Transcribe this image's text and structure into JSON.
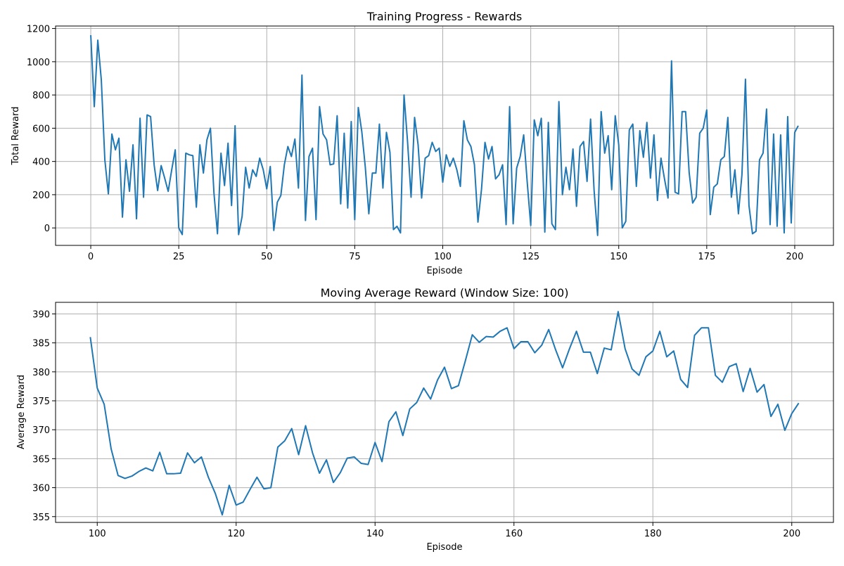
{
  "chart_data": [
    {
      "type": "line",
      "title": "Training Progress - Rewards",
      "xlabel": "Episode",
      "ylabel": "Total Reward",
      "xlim": [
        -10,
        211
      ],
      "ylim": [
        -105,
        1215
      ],
      "xticks": [
        0,
        25,
        50,
        75,
        100,
        125,
        150,
        175,
        200
      ],
      "yticks": [
        0,
        200,
        400,
        600,
        800,
        1000,
        1200
      ],
      "grid": true,
      "color": "#1f77b4",
      "series": [
        {
          "x_start": 0,
          "values": [
            1160,
            730,
            1130,
            890,
            410,
            205,
            565,
            470,
            540,
            65,
            410,
            220,
            500,
            55,
            660,
            185,
            680,
            670,
            380,
            225,
            375,
            300,
            220,
            350,
            470,
            0,
            -40,
            450,
            440,
            435,
            125,
            500,
            330,
            530,
            600,
            210,
            -35,
            450,
            255,
            510,
            135,
            615,
            -40,
            70,
            365,
            240,
            350,
            310,
            420,
            350,
            235,
            370,
            -15,
            155,
            195,
            380,
            490,
            430,
            535,
            240,
            920,
            45,
            430,
            480,
            50,
            730,
            565,
            530,
            380,
            385,
            675,
            145,
            570,
            120,
            640,
            50,
            725,
            580,
            365,
            85,
            330,
            330,
            625,
            240,
            575,
            455,
            -10,
            10,
            -30,
            800,
            520,
            185,
            665,
            500,
            180,
            420,
            435,
            515,
            460,
            480,
            275,
            440,
            370,
            420,
            350,
            250,
            645,
            530,
            490,
            380,
            35,
            230,
            515,
            415,
            490,
            295,
            320,
            380,
            20,
            730,
            25,
            360,
            430,
            560,
            275,
            15,
            650,
            555,
            660,
            -25,
            635,
            25,
            -10,
            760,
            200,
            365,
            230,
            475,
            130,
            490,
            520,
            280,
            655,
            225,
            -45,
            700,
            450,
            555,
            230,
            675,
            500,
            0,
            40,
            590,
            625,
            250,
            585,
            425,
            635,
            300,
            560,
            165,
            420,
            295,
            180,
            1005,
            215,
            205,
            700,
            700,
            335,
            150,
            185,
            570,
            600,
            710,
            80,
            245,
            265,
            410,
            430,
            665,
            185,
            350,
            85,
            320,
            895,
            135,
            -35,
            -20,
            410,
            450,
            715,
            20,
            565,
            10,
            560,
            -30,
            670,
            30,
            575,
            615
          ]
        }
      ]
    },
    {
      "type": "line",
      "title": "Moving Average Reward (Window Size: 100)",
      "xlabel": "Episode",
      "ylabel": "Average Reward",
      "xlim": [
        94,
        206
      ],
      "ylim": [
        354,
        392
      ],
      "xticks": [
        100,
        120,
        140,
        160,
        180,
        200
      ],
      "yticks": [
        355,
        360,
        365,
        370,
        375,
        380,
        385,
        390
      ],
      "grid": true,
      "color": "#1f77b4",
      "series": [
        {
          "x_start": 99,
          "values": [
            386.0,
            377.2,
            374.4,
            366.7,
            362.1,
            361.6,
            362.0,
            362.8,
            363.4,
            362.9,
            366.1,
            362.4,
            362.4,
            362.5,
            366.0,
            364.3,
            365.3,
            361.8,
            359.0,
            355.3,
            360.4,
            357.0,
            357.5,
            359.7,
            361.8,
            359.8,
            360.0,
            367.0,
            368.1,
            370.2,
            365.7,
            370.7,
            366.0,
            362.5,
            364.8,
            360.9,
            362.6,
            365.1,
            365.3,
            364.2,
            364.0,
            367.8,
            364.5,
            371.4,
            373.1,
            369.0,
            373.6,
            374.7,
            377.2,
            375.3,
            378.6,
            380.8,
            377.1,
            377.6,
            381.9,
            386.4,
            385.1,
            386.1,
            386.0,
            387.0,
            387.6,
            384.0,
            385.2,
            385.2,
            383.3,
            384.6,
            387.3,
            383.8,
            380.7,
            384.0,
            387.0,
            383.4,
            383.4,
            379.7,
            384.1,
            383.8,
            390.4,
            384.0,
            380.5,
            379.4,
            382.6,
            383.6,
            387.0,
            382.6,
            383.6,
            378.7,
            377.3,
            386.3,
            387.6,
            387.6,
            379.4,
            378.2,
            380.9,
            381.4,
            376.6,
            380.6,
            376.5,
            377.8,
            372.3,
            374.4,
            369.9,
            372.8,
            374.6
          ]
        }
      ]
    }
  ]
}
